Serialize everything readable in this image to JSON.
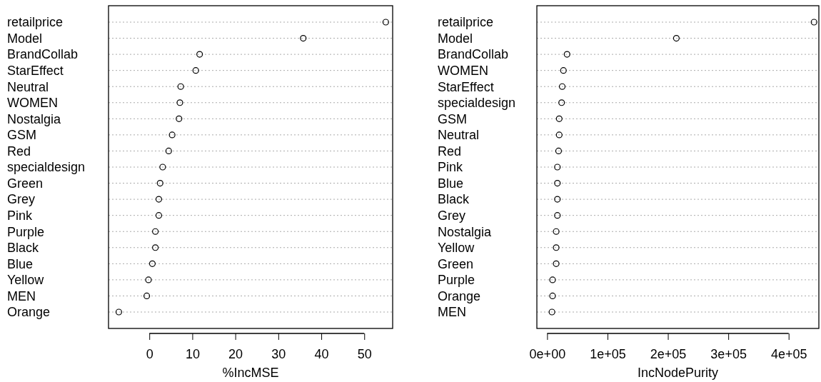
{
  "chart_data": [
    {
      "type": "scatter",
      "orientation": "horizontal",
      "marker": "circle",
      "grid": "y",
      "xlabel": "%IncMSE",
      "categories": [
        "retailprice",
        "Model",
        "BrandCollab",
        "StarEffect",
        "Neutral",
        "WOMEN",
        "Nostalgia",
        "GSM",
        "Red",
        "specialdesign",
        "Green",
        "Grey",
        "Pink",
        "Purple",
        "Black",
        "Blue",
        "Yellow",
        "MEN",
        "Orange"
      ],
      "values": [
        55.0,
        35.8,
        11.7,
        10.8,
        7.3,
        7.1,
        6.9,
        5.3,
        4.5,
        3.1,
        2.5,
        2.2,
        2.2,
        1.4,
        1.4,
        0.7,
        -0.2,
        -0.6,
        -7.1
      ],
      "color": "#000000",
      "xlim": [
        -9.5,
        56.6
      ],
      "xticks": [
        0,
        10,
        20,
        30,
        40,
        50
      ]
    },
    {
      "type": "scatter",
      "orientation": "horizontal",
      "marker": "circle",
      "grid": "y",
      "xlabel": "IncNodePurity",
      "categories": [
        "retailprice",
        "Model",
        "BrandCollab",
        "WOMEN",
        "StarEffect",
        "specialdesign",
        "GSM",
        "Neutral",
        "Red",
        "Pink",
        "Blue",
        "Black",
        "Grey",
        "Nostalgia",
        "Yellow",
        "Green",
        "Purple",
        "Orange",
        "MEN"
      ],
      "values": [
        442000,
        214000,
        33000,
        27000,
        25000,
        24000,
        20000,
        20000,
        19000,
        17000,
        17000,
        17000,
        17000,
        15000,
        15000,
        15000,
        9000,
        9000,
        8000
      ],
      "color": "#000000",
      "xlim": [
        -17000,
        450000
      ],
      "xticks": [
        {
          "value": 0,
          "label": "0e+00"
        },
        {
          "value": 100000,
          "label": "1e+05"
        },
        {
          "value": 200000,
          "label": "2e+05"
        },
        {
          "value": 300000,
          "label": "3e+05"
        },
        {
          "value": 400000,
          "label": "4e+05"
        }
      ]
    }
  ]
}
